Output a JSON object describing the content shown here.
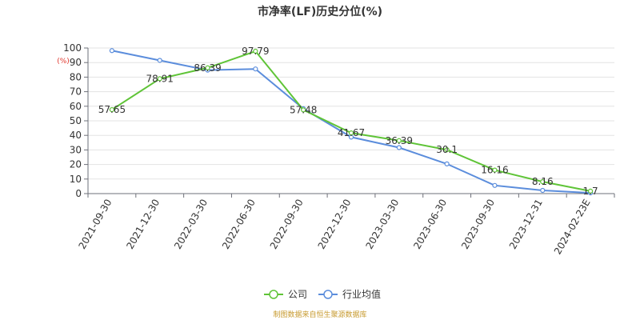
{
  "chart_data": {
    "type": "line",
    "title": "市净率(LF)历史分位(%)",
    "yunit": "(%)",
    "ylim": [
      0,
      100
    ],
    "yticks": [
      0,
      10,
      20,
      30,
      40,
      50,
      60,
      70,
      80,
      90,
      100
    ],
    "x": [
      "2021-09-30",
      "2021-12-30",
      "2022-03-30",
      "2022-06-30",
      "2022-09-30",
      "2022-12-30",
      "2023-03-30",
      "2023-06-30",
      "2023-09-30",
      "2023-12-31",
      "2024-02-23E"
    ],
    "series": [
      {
        "name": "公司",
        "color": "#5fc437",
        "values": [
          57.65,
          78.91,
          86.39,
          97.79,
          57.48,
          41.67,
          36.39,
          30.1,
          16.16,
          8.16,
          1.7
        ],
        "labels": [
          "57.65",
          "78.91",
          "86.39",
          "97.79",
          "57.48",
          "41.67",
          "36.39",
          "30.1",
          "16.16",
          "8.16",
          "1.7"
        ]
      },
      {
        "name": "行业均值",
        "color": "#5b8ddc",
        "values": [
          98.2,
          91.5,
          84.8,
          85.6,
          58.3,
          38.8,
          31.6,
          20.4,
          5.6,
          2.2,
          0.5
        ]
      }
    ],
    "grid": true,
    "legend_position": "bottom-center",
    "source": "制图数据来自恒生聚源数据库"
  }
}
